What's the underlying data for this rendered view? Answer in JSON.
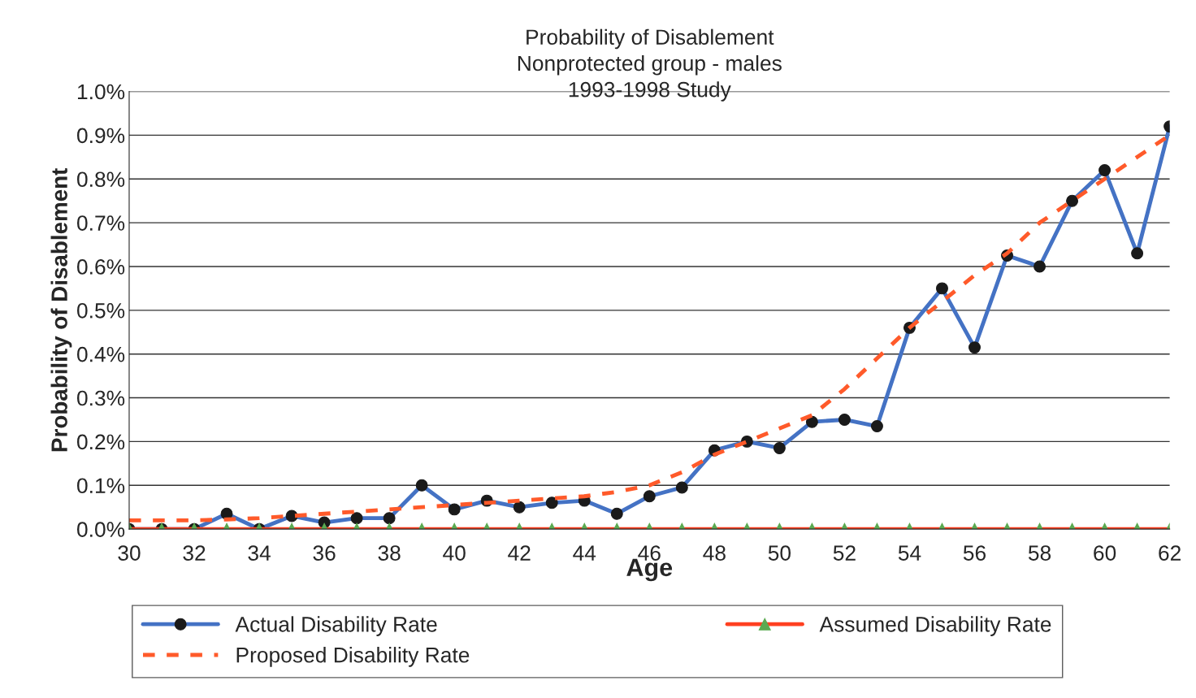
{
  "chart_data": {
    "type": "line",
    "title": "Probability of Disablement\nNonprotected group - males\n1993-1998 Study",
    "xlabel": "Age",
    "ylabel": "Probability of Disablement",
    "x": [
      30,
      31,
      32,
      33,
      34,
      35,
      36,
      37,
      38,
      39,
      40,
      41,
      42,
      43,
      44,
      45,
      46,
      47,
      48,
      49,
      50,
      51,
      52,
      53,
      54,
      55,
      56,
      57,
      58,
      59,
      60,
      61,
      62
    ],
    "series": [
      {
        "name": "Actual Disability Rate",
        "color": "#4472c4",
        "marker": "circle",
        "line_style": "solid",
        "values": [
          0.0,
          0.0,
          0.0,
          0.035,
          0.0,
          0.03,
          0.015,
          0.025,
          0.025,
          0.1,
          0.045,
          0.065,
          0.05,
          0.06,
          0.065,
          0.035,
          0.075,
          0.095,
          0.18,
          0.2,
          0.185,
          0.245,
          0.25,
          0.235,
          0.46,
          0.55,
          0.415,
          0.625,
          0.6,
          0.75,
          0.82,
          0.63,
          0.92
        ]
      },
      {
        "name": "Proposed Disability Rate",
        "color": "#ff5a2a",
        "marker": "none",
        "line_style": "dashed",
        "values": [
          0.02,
          0.02,
          0.02,
          0.022,
          0.025,
          0.03,
          0.035,
          0.04,
          0.045,
          0.05,
          0.055,
          0.06,
          0.065,
          0.07,
          0.075,
          0.085,
          0.1,
          0.13,
          0.17,
          0.2,
          0.23,
          0.26,
          0.32,
          0.39,
          0.46,
          0.52,
          0.58,
          0.63,
          0.7,
          0.75,
          0.8,
          0.85,
          0.9
        ]
      },
      {
        "name": "Assumed Disability Rate",
        "color": "#ff4020",
        "marker": "triangle",
        "line_style": "solid",
        "values": [
          0,
          0,
          0,
          0,
          0,
          0,
          0,
          0,
          0,
          0,
          0,
          0,
          0,
          0,
          0,
          0,
          0,
          0,
          0,
          0,
          0,
          0,
          0,
          0,
          0,
          0,
          0,
          0,
          0,
          0,
          0,
          0,
          0
        ]
      }
    ],
    "xlim": [
      30,
      62
    ],
    "xticks": [
      30,
      32,
      34,
      36,
      38,
      40,
      42,
      44,
      46,
      48,
      50,
      52,
      54,
      56,
      58,
      60,
      62
    ],
    "ylim": [
      0,
      1.0
    ],
    "yticks": [
      {
        "value": 0,
        "label": "0.0%"
      },
      {
        "value": 0.1,
        "label": "0.1%"
      },
      {
        "value": 0.2,
        "label": "0.2%"
      },
      {
        "value": 0.3,
        "label": "0.3%"
      },
      {
        "value": 0.4,
        "label": "0.4%"
      },
      {
        "value": 0.5,
        "label": "0.5%"
      },
      {
        "value": 0.6,
        "label": "0.6%"
      },
      {
        "value": 0.7,
        "label": "0.7%"
      },
      {
        "value": 0.8,
        "label": "0.8%"
      },
      {
        "value": 0.9,
        "label": "0.9%"
      },
      {
        "value": 1.0,
        "label": "1.0%"
      }
    ],
    "grid": "y",
    "legend": "bottom"
  }
}
